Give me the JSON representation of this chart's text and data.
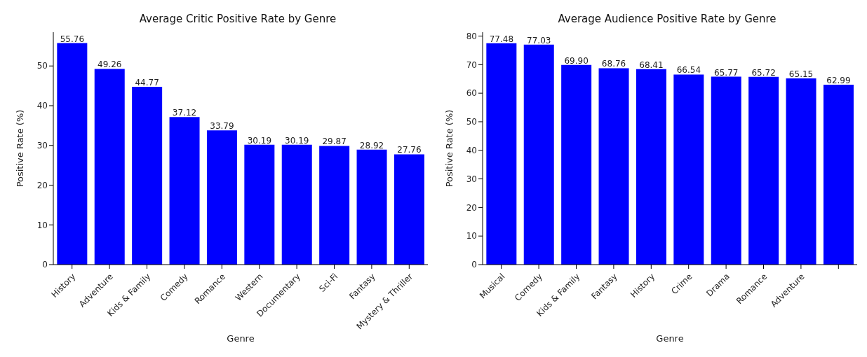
{
  "chart_data": [
    {
      "type": "bar",
      "title": "Average Critic Positive Rate by Genre",
      "xlabel": "Genre",
      "ylabel": "Positive Rate (%)",
      "categories": [
        "History",
        "Adventure",
        "Kids & Family",
        "Comedy",
        "Romance",
        "Western",
        "Documentary",
        "Sci-Fi",
        "Fantasy",
        "Mystery & Thriller"
      ],
      "values": [
        55.76,
        49.26,
        44.77,
        37.12,
        33.79,
        30.19,
        30.19,
        29.87,
        28.92,
        27.76
      ],
      "value_labels": [
        "55.76",
        "49.26",
        "44.77",
        "37.12",
        "33.79",
        "30.19",
        "30.19",
        "29.87",
        "28.92",
        "27.76"
      ],
      "color": "#0000ff",
      "ylim": [
        0,
        58.5
      ],
      "yticks": [
        0,
        10,
        20,
        30,
        40,
        50
      ],
      "grid": false,
      "legend": false
    },
    {
      "type": "bar",
      "title": "Average Audience Positive Rate by Genre",
      "xlabel": "Genre",
      "ylabel": "Positive Rate (%)",
      "categories": [
        "Musical",
        "Comedy",
        "Kids & Family",
        "Fantasy",
        "History",
        "Crime",
        "Drama",
        "Romance",
        "Adventure",
        null
      ],
      "values": [
        77.48,
        77.03,
        69.9,
        68.76,
        68.41,
        66.54,
        65.77,
        65.72,
        65.15,
        62.99
      ],
      "value_labels": [
        "77.48",
        "77.03",
        "69.90",
        "68.76",
        "68.41",
        "66.54",
        "65.77",
        "65.72",
        "65.15",
        "62.99"
      ],
      "color": "#0000ff",
      "ylim": [
        0,
        81.35
      ],
      "yticks": [
        0,
        10,
        20,
        30,
        40,
        50,
        60,
        70,
        80
      ],
      "grid": false,
      "legend": false
    }
  ]
}
